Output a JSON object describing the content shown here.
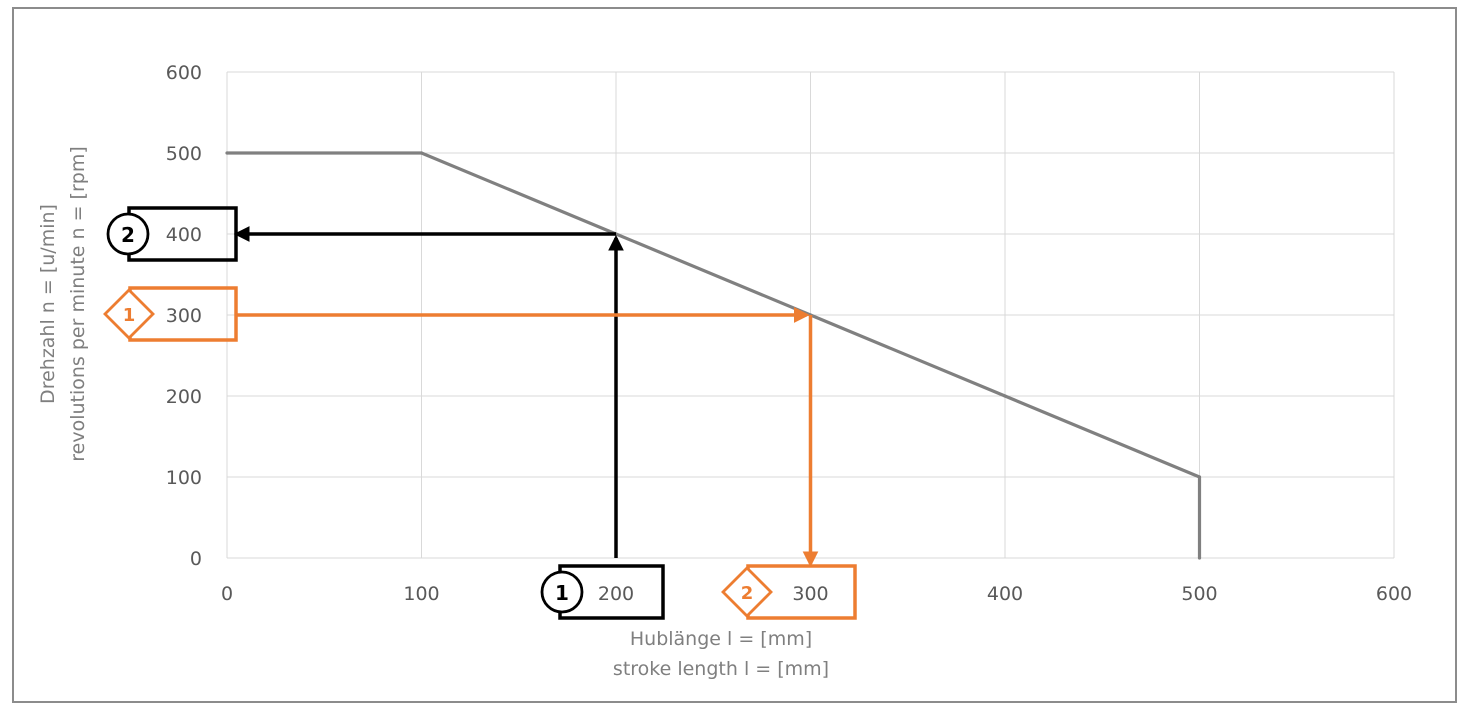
{
  "colors": {
    "curve": "#808080",
    "grid": "#d9d9d9",
    "tick_text": "#595959",
    "axis_title": "#7f7f7f",
    "example_black": "#000000",
    "example_orange": "#ed7d31"
  },
  "chart_data": {
    "type": "line",
    "title": "",
    "xlabel": [
      "Hublänge l = [mm]",
      "stroke length l = [mm]"
    ],
    "ylabel": [
      "Drehzahl n = [u/min]",
      "revolutions per minute n = [rpm]"
    ],
    "xlim": [
      0,
      600
    ],
    "ylim": [
      0,
      600
    ],
    "xticks": [
      0,
      100,
      200,
      300,
      400,
      500,
      600
    ],
    "yticks": [
      0,
      100,
      200,
      300,
      400,
      500,
      600
    ],
    "grid": true,
    "legend": "none",
    "series": [
      {
        "x": [
          0,
          100,
          200,
          300,
          400,
          500,
          500
        ],
        "y": [
          500,
          500,
          400,
          300,
          200,
          100,
          0
        ]
      }
    ],
    "annotations": [
      {
        "color": "black",
        "shape": "circle",
        "step1": "1",
        "step2": "2",
        "from_x": 200,
        "to_y": 400
      },
      {
        "color": "orange",
        "shape": "diamond",
        "step1": "1",
        "step2": "2",
        "from_y": 300,
        "to_x": 300
      }
    ]
  }
}
